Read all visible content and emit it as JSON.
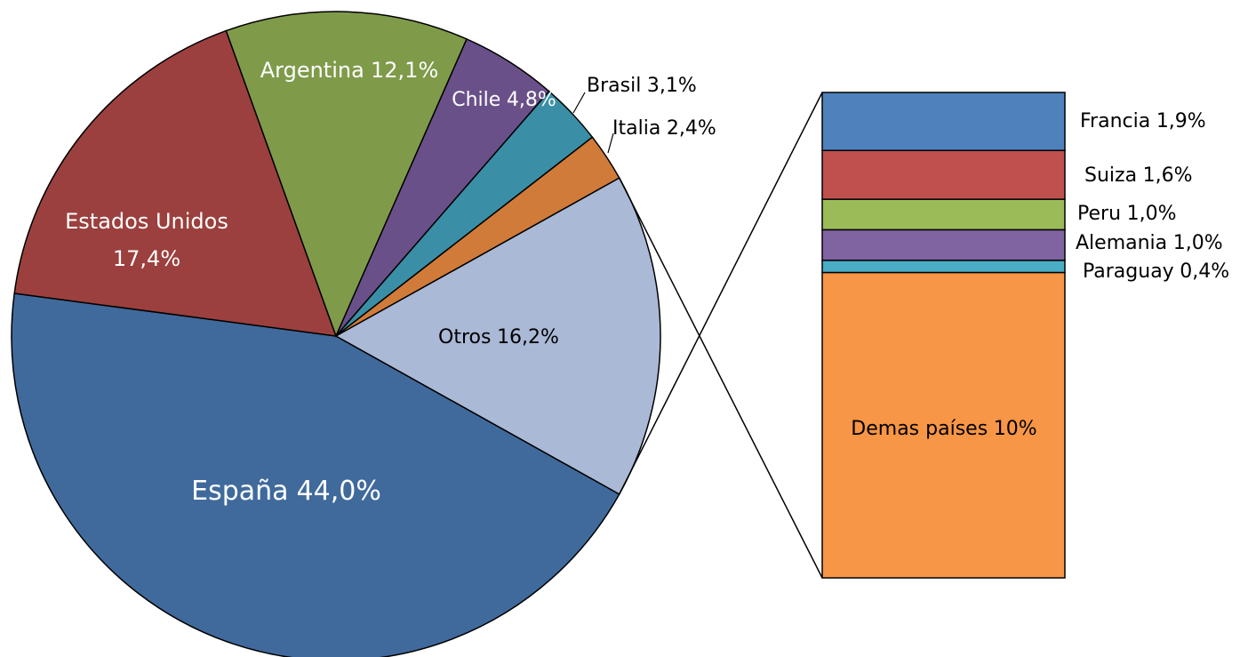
{
  "chart_data": {
    "type": "pie",
    "categories": [
      "España",
      "Estados Unidos",
      "Argentina",
      "Chile",
      "Brasil",
      "Italia",
      "Otros"
    ],
    "values": [
      44.0,
      17.4,
      12.1,
      4.8,
      3.1,
      2.4,
      16.2
    ],
    "value_labels": [
      "44,0%",
      "17,4%",
      "12,1%",
      "4,8%",
      "3,1%",
      "2,4%",
      "16,2%"
    ],
    "colors": [
      "#406a9c",
      "#9b403e",
      "#7f9b4a",
      "#6a5089",
      "#3a8fa6",
      "#d17b3a",
      "#aab9d6"
    ],
    "breakdown": {
      "categories": [
        "Francia",
        "Suiza",
        "Peru",
        "Alemania",
        "Paraguay",
        "Demas países"
      ],
      "values": [
        1.9,
        1.6,
        1.0,
        1.0,
        0.4,
        10
      ],
      "value_labels": [
        "1,9%",
        "1,6%",
        "1,0%",
        "1,0%",
        "0,4%",
        "10%"
      ],
      "colors": [
        "#4f81bd",
        "#c0504d",
        "#9bbb59",
        "#8064a2",
        "#4bacc6",
        "#f79646"
      ]
    }
  }
}
